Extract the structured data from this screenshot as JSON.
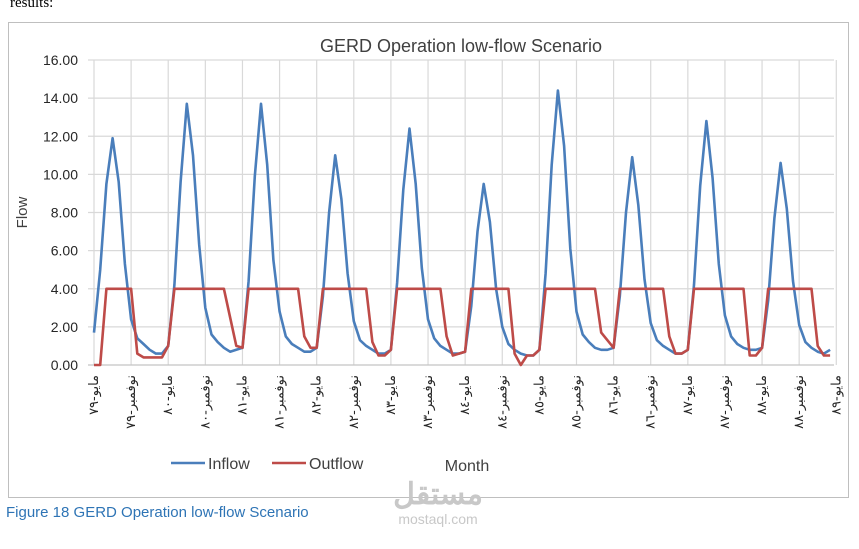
{
  "header_text": "results:",
  "caption": "Figure 18 GERD Operation low-flow Scenario",
  "watermark": {
    "logo": "مستقل",
    "url": "mostaql.com"
  },
  "chart_data": {
    "type": "line",
    "title": "GERD Operation low-flow Scenario",
    "xlabel": "Month",
    "ylabel": "Flow",
    "ylim": [
      0,
      16
    ],
    "yticks": [
      "0.00",
      "2.00",
      "4.00",
      "6.00",
      "8.00",
      "10.00",
      "12.00",
      "14.00",
      "16.00"
    ],
    "grid": true,
    "legend_position": "bottom-left",
    "x_tick_labels": [
      "مايو-٧٩",
      "نوفمبر-٧٩",
      "مايو-٨٠",
      "نوفمبر-٨٠",
      "مايو-٨١",
      "نوفمبر-٨١",
      "مايو-٨٢",
      "نوفمبر-٨٢",
      "مايو-٨٣",
      "نوفمبر-٨٣",
      "مايو-٨٤",
      "نوفمبر-٨٤",
      "مايو-٨٥",
      "نوفمبر-٨٥",
      "مايو-٨٦",
      "نوفمبر-٨٦",
      "مايو-٨٧",
      "نوفمبر-٨٧",
      "مايو-٨٨",
      "نوفمبر-٨٨",
      "مايو-٨٩"
    ],
    "series": [
      {
        "name": "Inflow",
        "color": "#4a7ebb",
        "values": [
          1.7,
          5.0,
          9.5,
          11.9,
          9.6,
          5.3,
          2.4,
          1.4,
          1.1,
          0.8,
          0.6,
          0.6,
          1.0,
          4.2,
          9.6,
          13.7,
          11.0,
          6.3,
          3.0,
          1.6,
          1.2,
          0.9,
          0.7,
          0.8,
          0.9,
          4.4,
          9.9,
          13.7,
          10.5,
          5.5,
          2.8,
          1.5,
          1.1,
          0.9,
          0.7,
          0.7,
          0.9,
          3.6,
          8.0,
          11.0,
          8.7,
          4.8,
          2.3,
          1.3,
          1.0,
          0.8,
          0.6,
          0.6,
          0.8,
          4.3,
          9.2,
          12.4,
          9.5,
          5.1,
          2.4,
          1.4,
          1.0,
          0.8,
          0.6,
          0.6,
          0.7,
          3.1,
          7.0,
          9.5,
          7.5,
          4.0,
          2.0,
          1.1,
          0.8,
          0.6,
          0.5,
          0.5,
          0.8,
          4.8,
          10.5,
          14.4,
          11.5,
          6.1,
          2.8,
          1.6,
          1.2,
          0.9,
          0.8,
          0.8,
          0.9,
          3.6,
          8.0,
          10.9,
          8.4,
          4.5,
          2.2,
          1.3,
          1.0,
          0.8,
          0.6,
          0.6,
          0.8,
          4.2,
          9.4,
          12.8,
          9.8,
          5.3,
          2.6,
          1.5,
          1.1,
          0.9,
          0.8,
          0.8,
          0.9,
          3.4,
          7.7,
          10.6,
          8.2,
          4.4,
          2.1,
          1.2,
          0.9,
          0.7,
          0.6,
          0.8
        ]
      },
      {
        "name": "Outflow",
        "color": "#be4b48",
        "values": [
          0.0,
          0.0,
          4.0,
          4.0,
          4.0,
          4.0,
          4.0,
          0.6,
          0.4,
          0.4,
          0.4,
          0.4,
          1.0,
          4.0,
          4.0,
          4.0,
          4.0,
          4.0,
          4.0,
          4.0,
          4.0,
          4.0,
          2.5,
          1.0,
          0.9,
          4.0,
          4.0,
          4.0,
          4.0,
          4.0,
          4.0,
          4.0,
          4.0,
          4.0,
          1.5,
          0.9,
          0.9,
          4.0,
          4.0,
          4.0,
          4.0,
          4.0,
          4.0,
          4.0,
          4.0,
          1.2,
          0.5,
          0.5,
          0.8,
          4.0,
          4.0,
          4.0,
          4.0,
          4.0,
          4.0,
          4.0,
          4.0,
          1.5,
          0.5,
          0.6,
          0.7,
          4.0,
          4.0,
          4.0,
          4.0,
          4.0,
          4.0,
          4.0,
          0.6,
          0.0,
          0.5,
          0.5,
          0.8,
          4.0,
          4.0,
          4.0,
          4.0,
          4.0,
          4.0,
          4.0,
          4.0,
          4.0,
          1.7,
          1.3,
          0.9,
          4.0,
          4.0,
          4.0,
          4.0,
          4.0,
          4.0,
          4.0,
          4.0,
          1.5,
          0.6,
          0.6,
          0.8,
          4.0,
          4.0,
          4.0,
          4.0,
          4.0,
          4.0,
          4.0,
          4.0,
          4.0,
          0.5,
          0.5,
          0.9,
          4.0,
          4.0,
          4.0,
          4.0,
          4.0,
          4.0,
          4.0,
          4.0,
          1.0,
          0.5,
          0.5
        ]
      }
    ]
  }
}
